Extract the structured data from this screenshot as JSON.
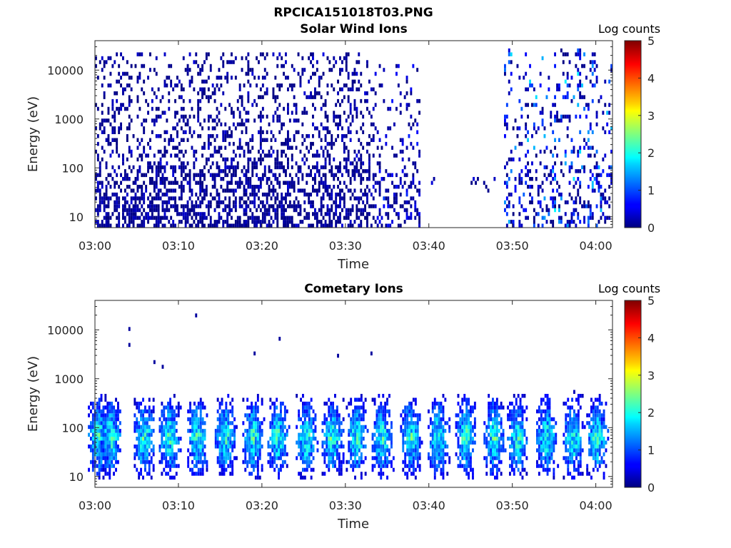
{
  "figure": {
    "filename": "RPCICA151018T03.PNG"
  },
  "chart_data": [
    {
      "type": "heatmap",
      "title": "Solar Wind Ions",
      "xlabel": "Time",
      "ylabel": "Energy (eV)",
      "x_range": [
        "03:00",
        "04:02"
      ],
      "x_ticks": [
        "03:00",
        "03:10",
        "03:20",
        "03:30",
        "03:40",
        "03:50",
        "04:00"
      ],
      "y_scale": "log",
      "y_range": [
        6,
        40000
      ],
      "y_ticks": [
        10,
        100,
        1000,
        10000
      ],
      "y_tick_labels": [
        "10",
        "100",
        "1000",
        "10000"
      ],
      "colorbar": {
        "label": "Log counts",
        "range": [
          0,
          5
        ],
        "ticks": [
          "0",
          "1",
          "2",
          "3",
          "4",
          "5"
        ],
        "colormap": "jet"
      },
      "activity": [
        {
          "t_start": "03:00",
          "t_end": "03:33",
          "energy_min": 6,
          "energy_max": 20000,
          "log_counts": "0-0.5",
          "density": "high"
        },
        {
          "t_start": "03:33",
          "t_end": "03:39",
          "energy_min": 6,
          "energy_max": 12000,
          "log_counts": "0-1",
          "density": "medium"
        },
        {
          "t_start": "03:40",
          "t_end": "03:41",
          "energy_min": 30,
          "energy_max": 60,
          "log_counts": "0-1.5",
          "density": "low"
        },
        {
          "t_start": "03:45",
          "t_end": "03:48",
          "energy_min": 30,
          "energy_max": 60,
          "log_counts": "0-0.5",
          "density": "low"
        },
        {
          "t_start": "03:49",
          "t_end": "04:02",
          "energy_min": 6,
          "energy_max": 25000,
          "log_counts": "0-2",
          "density": "medium"
        }
      ],
      "legend": "colorbar-right",
      "grid": false
    },
    {
      "type": "heatmap",
      "title": "Cometary Ions",
      "xlabel": "Time",
      "ylabel": "Energy (eV)",
      "x_range": [
        "03:00",
        "04:02"
      ],
      "x_ticks": [
        "03:00",
        "03:10",
        "03:20",
        "03:30",
        "03:40",
        "03:50",
        "04:00"
      ],
      "y_scale": "log",
      "y_range": [
        6,
        40000
      ],
      "y_ticks": [
        10,
        100,
        1000,
        10000
      ],
      "y_tick_labels": [
        "10",
        "100",
        "1000",
        "10000"
      ],
      "colorbar": {
        "label": "Log counts",
        "range": [
          0,
          5
        ],
        "ticks": [
          "0",
          "1",
          "2",
          "3",
          "4",
          "5"
        ],
        "colormap": "jet"
      },
      "bursts_center_min": [
        0.3,
        1.8,
        5.8,
        8.8,
        12.2,
        15.5,
        18.8,
        21.8,
        25.2,
        28.3,
        31.2,
        34.3,
        37.7,
        41.0,
        44.3,
        47.7,
        50.5,
        54.0,
        57.2,
        60.0
      ],
      "burst_energy_range": [
        8,
        700
      ],
      "peak_log_counts": 2.9,
      "sparse_high_energy_points": [
        {
          "time": "03:04",
          "energy": 9500
        },
        {
          "time": "03:04",
          "energy": 4500
        },
        {
          "time": "03:07",
          "energy": 2000
        },
        {
          "time": "03:08",
          "energy": 1600
        },
        {
          "time": "03:12",
          "energy": 18000
        },
        {
          "time": "03:19",
          "energy": 3000
        },
        {
          "time": "03:22",
          "energy": 6000
        },
        {
          "time": "03:29",
          "energy": 2700
        },
        {
          "time": "03:33",
          "energy": 3000
        }
      ],
      "legend": "colorbar-right",
      "grid": false
    }
  ]
}
